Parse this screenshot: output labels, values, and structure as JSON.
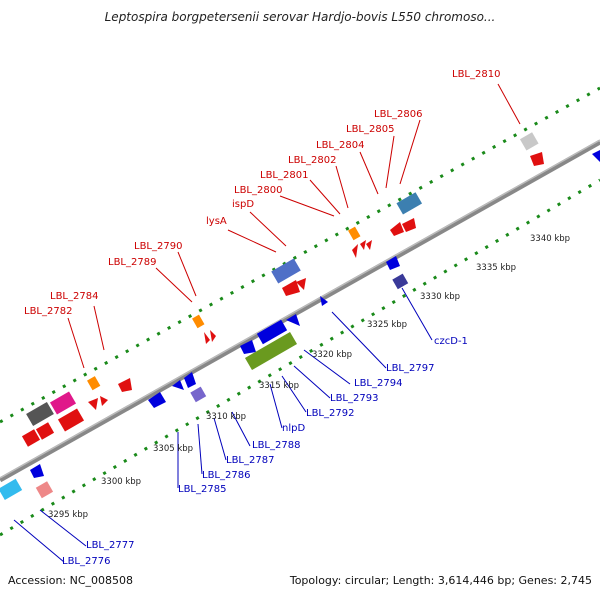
{
  "title": "Leptospira borgpetersenii serovar Hardjo-bovis L550 chromoso...",
  "accession": "Accession: NC_008508",
  "topology": "Topology: circular; Length: 3,614,446 bp; Genes: 2,745",
  "colors": {
    "forward_label": "#cc0000",
    "reverse_label": "#0000bb",
    "backbone": "#888888",
    "ruler_dots": "#1a8a1a"
  },
  "ticks": [
    "3295 kbp",
    "3300 kbp",
    "3305 kbp",
    "3310 kbp",
    "3315 kbp",
    "3320 kbp",
    "3325 kbp",
    "3330 kbp",
    "3335 kbp",
    "3340 kbp"
  ],
  "forward_genes": [
    "LBL_2782",
    "LBL_2784",
    "LBL_2789",
    "LBL_2790",
    "lysA",
    "ispD",
    "LBL_2800",
    "LBL_2801",
    "LBL_2802",
    "LBL_2804",
    "LBL_2805",
    "LBL_2806",
    "LBL_2810"
  ],
  "reverse_genes": [
    "LBL_2776",
    "LBL_2777",
    "LBL_2785",
    "LBL_2786",
    "LBL_2787",
    "LBL_2788",
    "nlpD",
    "LBL_2792",
    "LBL_2793",
    "LBL_2794",
    "LBL_2797",
    "czcD-1"
  ]
}
